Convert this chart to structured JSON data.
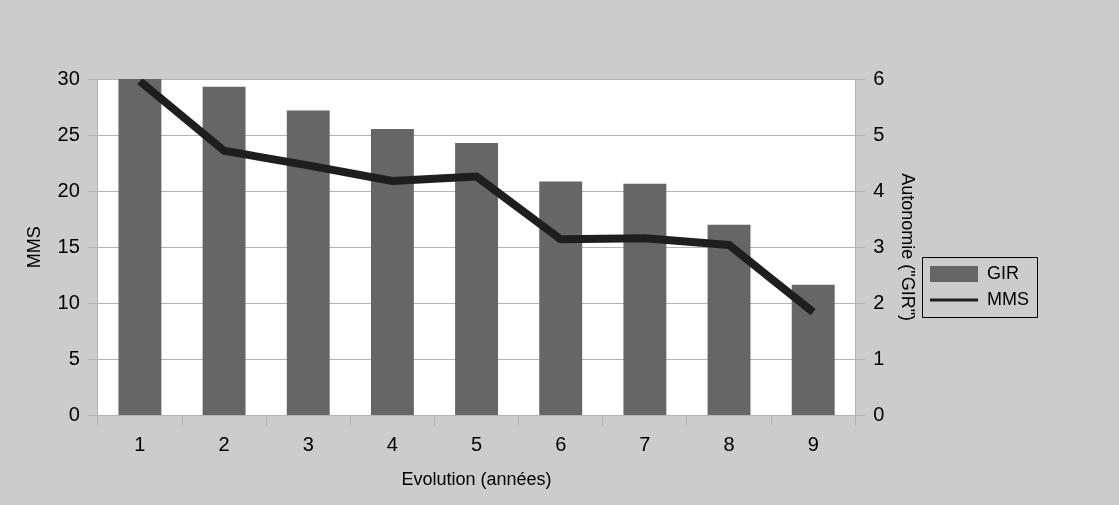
{
  "chart_data": {
    "type": "bar",
    "xlabel": "Evolution (années)",
    "ylabel": "MMS",
    "y2label": "Autonomie (\"GIR\")",
    "categories": [
      "1",
      "2",
      "3",
      "4",
      "5",
      "6",
      "7",
      "8",
      "9"
    ],
    "series": [
      {
        "name": "GIR",
        "axis": "y2",
        "color": "#666666",
        "values": [
          6.0,
          5.86,
          5.44,
          5.11,
          4.86,
          4.17,
          4.13,
          3.4,
          2.33
        ]
      },
      {
        "name": "MMS",
        "type": "line",
        "color": "#1e1e1e",
        "values": [
          29.8,
          23.6,
          22.3,
          20.9,
          21.3,
          15.7,
          15.8,
          15.2,
          9.2
        ]
      }
    ],
    "ylim": [
      0,
      30
    ],
    "yticks": [
      0,
      5,
      10,
      15,
      20,
      25,
      30
    ],
    "y2lim": [
      0,
      6
    ],
    "y2ticks": [
      0,
      1,
      2,
      3,
      4,
      5,
      6
    ],
    "grid": "y",
    "legend": "right",
    "marker": "none"
  }
}
